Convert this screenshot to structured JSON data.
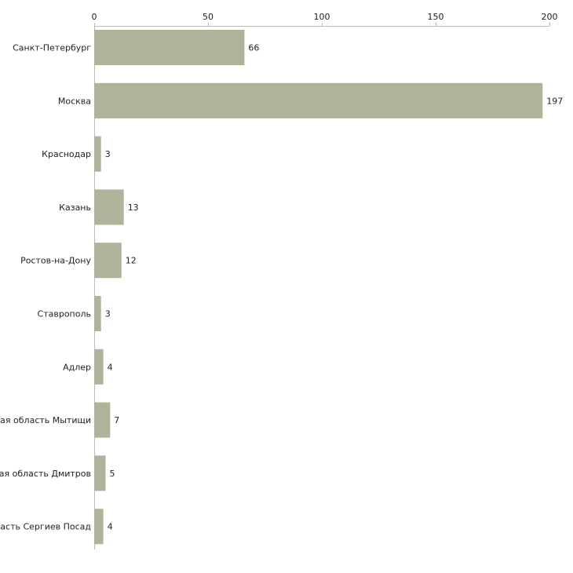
{
  "chart_data": {
    "type": "bar",
    "orientation": "horizontal",
    "title": "",
    "xlabel": "",
    "ylabel": "",
    "xlim": [
      0,
      200
    ],
    "xticks": [
      0,
      50,
      100,
      150,
      200
    ],
    "grid": false,
    "axis_position": "top",
    "bar_color": "#aeb39a",
    "axis_color": "#bbbbbb",
    "categories": [
      "Санкт-Петербург",
      "Москва",
      "Краснодар",
      "Казань",
      "Ростов-на-Дону",
      "Ставрополь",
      "Адлер",
      "Московская область Мытищи",
      "Московская область Дмитров",
      "Московская область Сергиев Посад"
    ],
    "values": [
      66,
      197,
      3,
      13,
      12,
      3,
      4,
      7,
      5,
      4
    ]
  }
}
